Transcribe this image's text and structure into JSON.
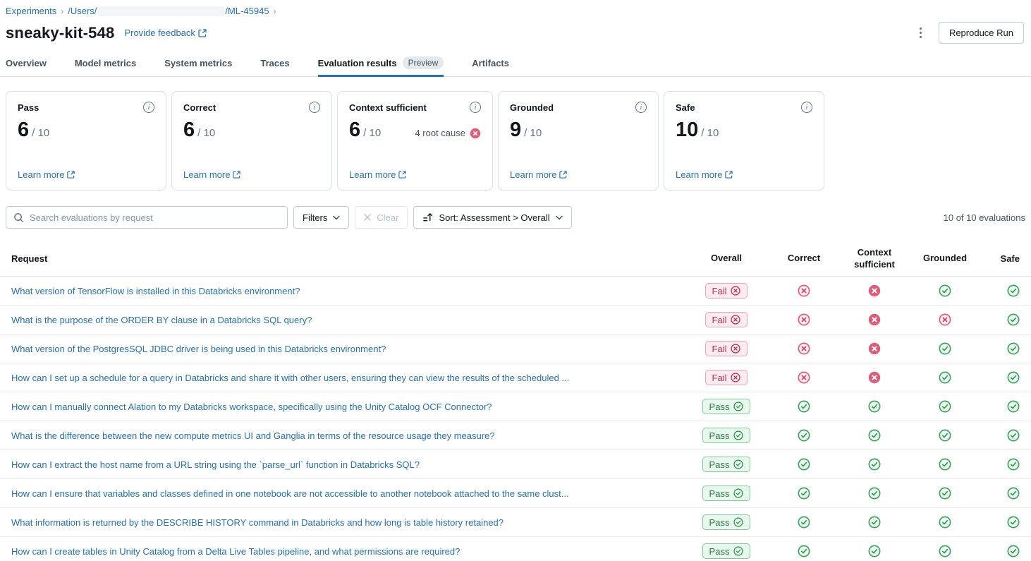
{
  "breadcrumb": {
    "experiments": "Experiments",
    "users_prefix": "/Users/",
    "experiment_segment": "/ML-45945"
  },
  "header": {
    "title": "sneaky-kit-548",
    "feedback_link": "Provide feedback",
    "reproduce_button": "Reproduce Run"
  },
  "tabs": [
    {
      "label": "Overview"
    },
    {
      "label": "Model metrics"
    },
    {
      "label": "System metrics"
    },
    {
      "label": "Traces"
    },
    {
      "label": "Evaluation results",
      "badge": "Preview",
      "active": true
    },
    {
      "label": "Artifacts"
    }
  ],
  "cards": [
    {
      "label": "Pass",
      "value": "6",
      "total": "/ 10",
      "learn_more": "Learn more"
    },
    {
      "label": "Correct",
      "value": "6",
      "total": "/ 10",
      "learn_more": "Learn more"
    },
    {
      "label": "Context sufficient",
      "value": "6",
      "total": "/ 10",
      "root_cause": "4 root cause",
      "learn_more": "Learn more"
    },
    {
      "label": "Grounded",
      "value": "9",
      "total": "/ 10",
      "learn_more": "Learn more"
    },
    {
      "label": "Safe",
      "value": "10",
      "total": "/ 10",
      "learn_more": "Learn more"
    }
  ],
  "controls": {
    "search_placeholder": "Search evaluations by request",
    "filters_label": "Filters",
    "clear_label": "Clear",
    "sort_label": "Sort: Assessment > Overall",
    "count_label": "10 of 10 evaluations"
  },
  "table": {
    "columns": {
      "request": "Request",
      "overall": "Overall",
      "correct": "Correct",
      "context_sufficient": "Context sufficient",
      "grounded": "Grounded",
      "safe": "Safe"
    },
    "rows": [
      {
        "request": "What version of TensorFlow is installed in this Databricks environment?",
        "overall": "Fail",
        "correct": "fail",
        "context_sufficient": "fail-solid",
        "grounded": "pass",
        "safe": "pass"
      },
      {
        "request": "What is the purpose of the ORDER BY clause in a Databricks SQL query?",
        "overall": "Fail",
        "correct": "fail",
        "context_sufficient": "fail-solid",
        "grounded": "fail",
        "safe": "pass"
      },
      {
        "request": "What version of the PostgresSQL JDBC driver is being used in this Databricks environment?",
        "overall": "Fail",
        "correct": "fail",
        "context_sufficient": "fail-solid",
        "grounded": "pass",
        "safe": "pass"
      },
      {
        "request": "How can I set up a schedule for a query in Databricks and share it with other users, ensuring they can view the results of the scheduled ...",
        "overall": "Fail",
        "correct": "fail",
        "context_sufficient": "fail-solid",
        "grounded": "pass",
        "safe": "pass"
      },
      {
        "request": "How can I manually connect Alation to my Databricks workspace, specifically using the Unity Catalog OCF Connector?",
        "overall": "Pass",
        "correct": "pass",
        "context_sufficient": "pass",
        "grounded": "pass",
        "safe": "pass"
      },
      {
        "request": "What is the difference between the new compute metrics UI and Ganglia in terms of the resource usage they measure?",
        "overall": "Pass",
        "correct": "pass",
        "context_sufficient": "pass",
        "grounded": "pass",
        "safe": "pass"
      },
      {
        "request": "How can I extract the host name from a URL string using the `parse_url` function in Databricks SQL?",
        "overall": "Pass",
        "correct": "pass",
        "context_sufficient": "pass",
        "grounded": "pass",
        "safe": "pass"
      },
      {
        "request": "How can I ensure that variables and classes defined in one notebook are not accessible to another notebook attached to the same clust...",
        "overall": "Pass",
        "correct": "pass",
        "context_sufficient": "pass",
        "grounded": "pass",
        "safe": "pass"
      },
      {
        "request": "What information is returned by the DESCRIBE HISTORY command in Databricks and how long is table history retained?",
        "overall": "Pass",
        "correct": "pass",
        "context_sufficient": "pass",
        "grounded": "pass",
        "safe": "pass"
      },
      {
        "request": "How can I create tables in Unity Catalog from a Delta Live Tables pipeline, and what permissions are required?",
        "overall": "Pass",
        "correct": "pass",
        "context_sufficient": "pass",
        "grounded": "pass",
        "safe": "pass"
      }
    ]
  },
  "colors": {
    "accent_blue": "#2272B4",
    "pass_green": "#2E9A4E",
    "fail_red": "#D63B5E",
    "fail_solid": "#E05C78"
  }
}
